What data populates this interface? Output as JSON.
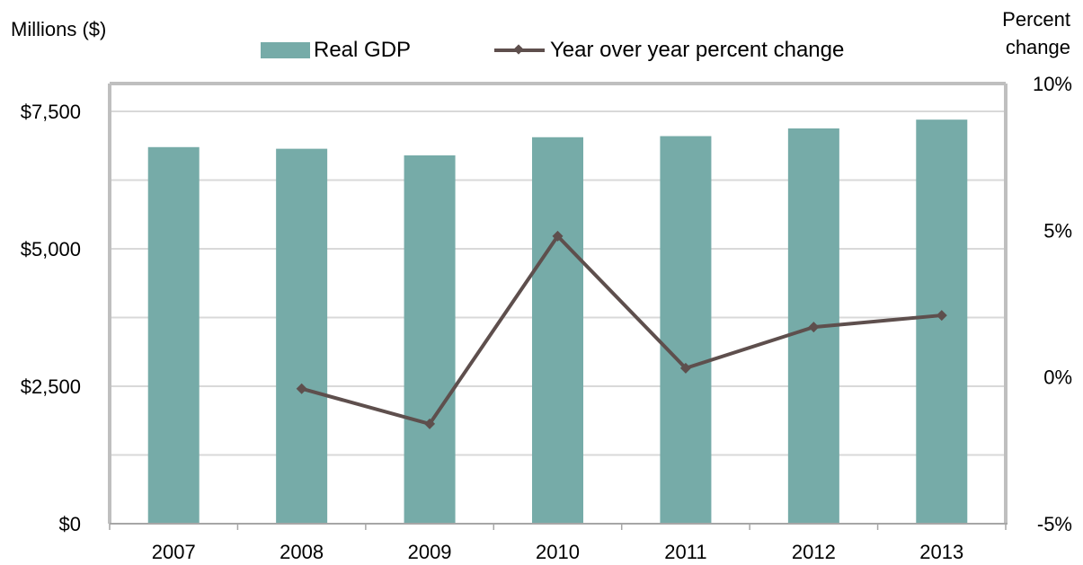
{
  "chart_data": {
    "type": "bar",
    "categories": [
      "2007",
      "2008",
      "2009",
      "2010",
      "2011",
      "2012",
      "2013"
    ],
    "series": [
      {
        "name": "Real GDP",
        "type": "bar",
        "axis": "left",
        "color": "#76aba8",
        "values": [
          6850,
          6820,
          6700,
          7030,
          7050,
          7190,
          7350
        ]
      },
      {
        "name": "Year over year percent change",
        "type": "line",
        "axis": "right",
        "color": "#5e4f4d",
        "values": [
          null,
          -0.4,
          -1.6,
          4.8,
          0.3,
          1.7,
          2.1
        ]
      }
    ],
    "y_left": {
      "label": "Millions ($)",
      "ticks": [
        0,
        2500,
        5000,
        7500
      ],
      "tick_labels": [
        "$0",
        "$2,500",
        "$5,000",
        "$7,500"
      ],
      "ylim": [
        0,
        7500
      ]
    },
    "y_right": {
      "label_lines": [
        "Percent",
        "change"
      ],
      "ticks": [
        -5,
        0,
        5,
        10
      ],
      "tick_labels": [
        "-5%",
        "0%",
        "5%",
        "10%"
      ],
      "ylim": [
        -5,
        10
      ]
    },
    "grid": true,
    "legend_position": "top"
  }
}
